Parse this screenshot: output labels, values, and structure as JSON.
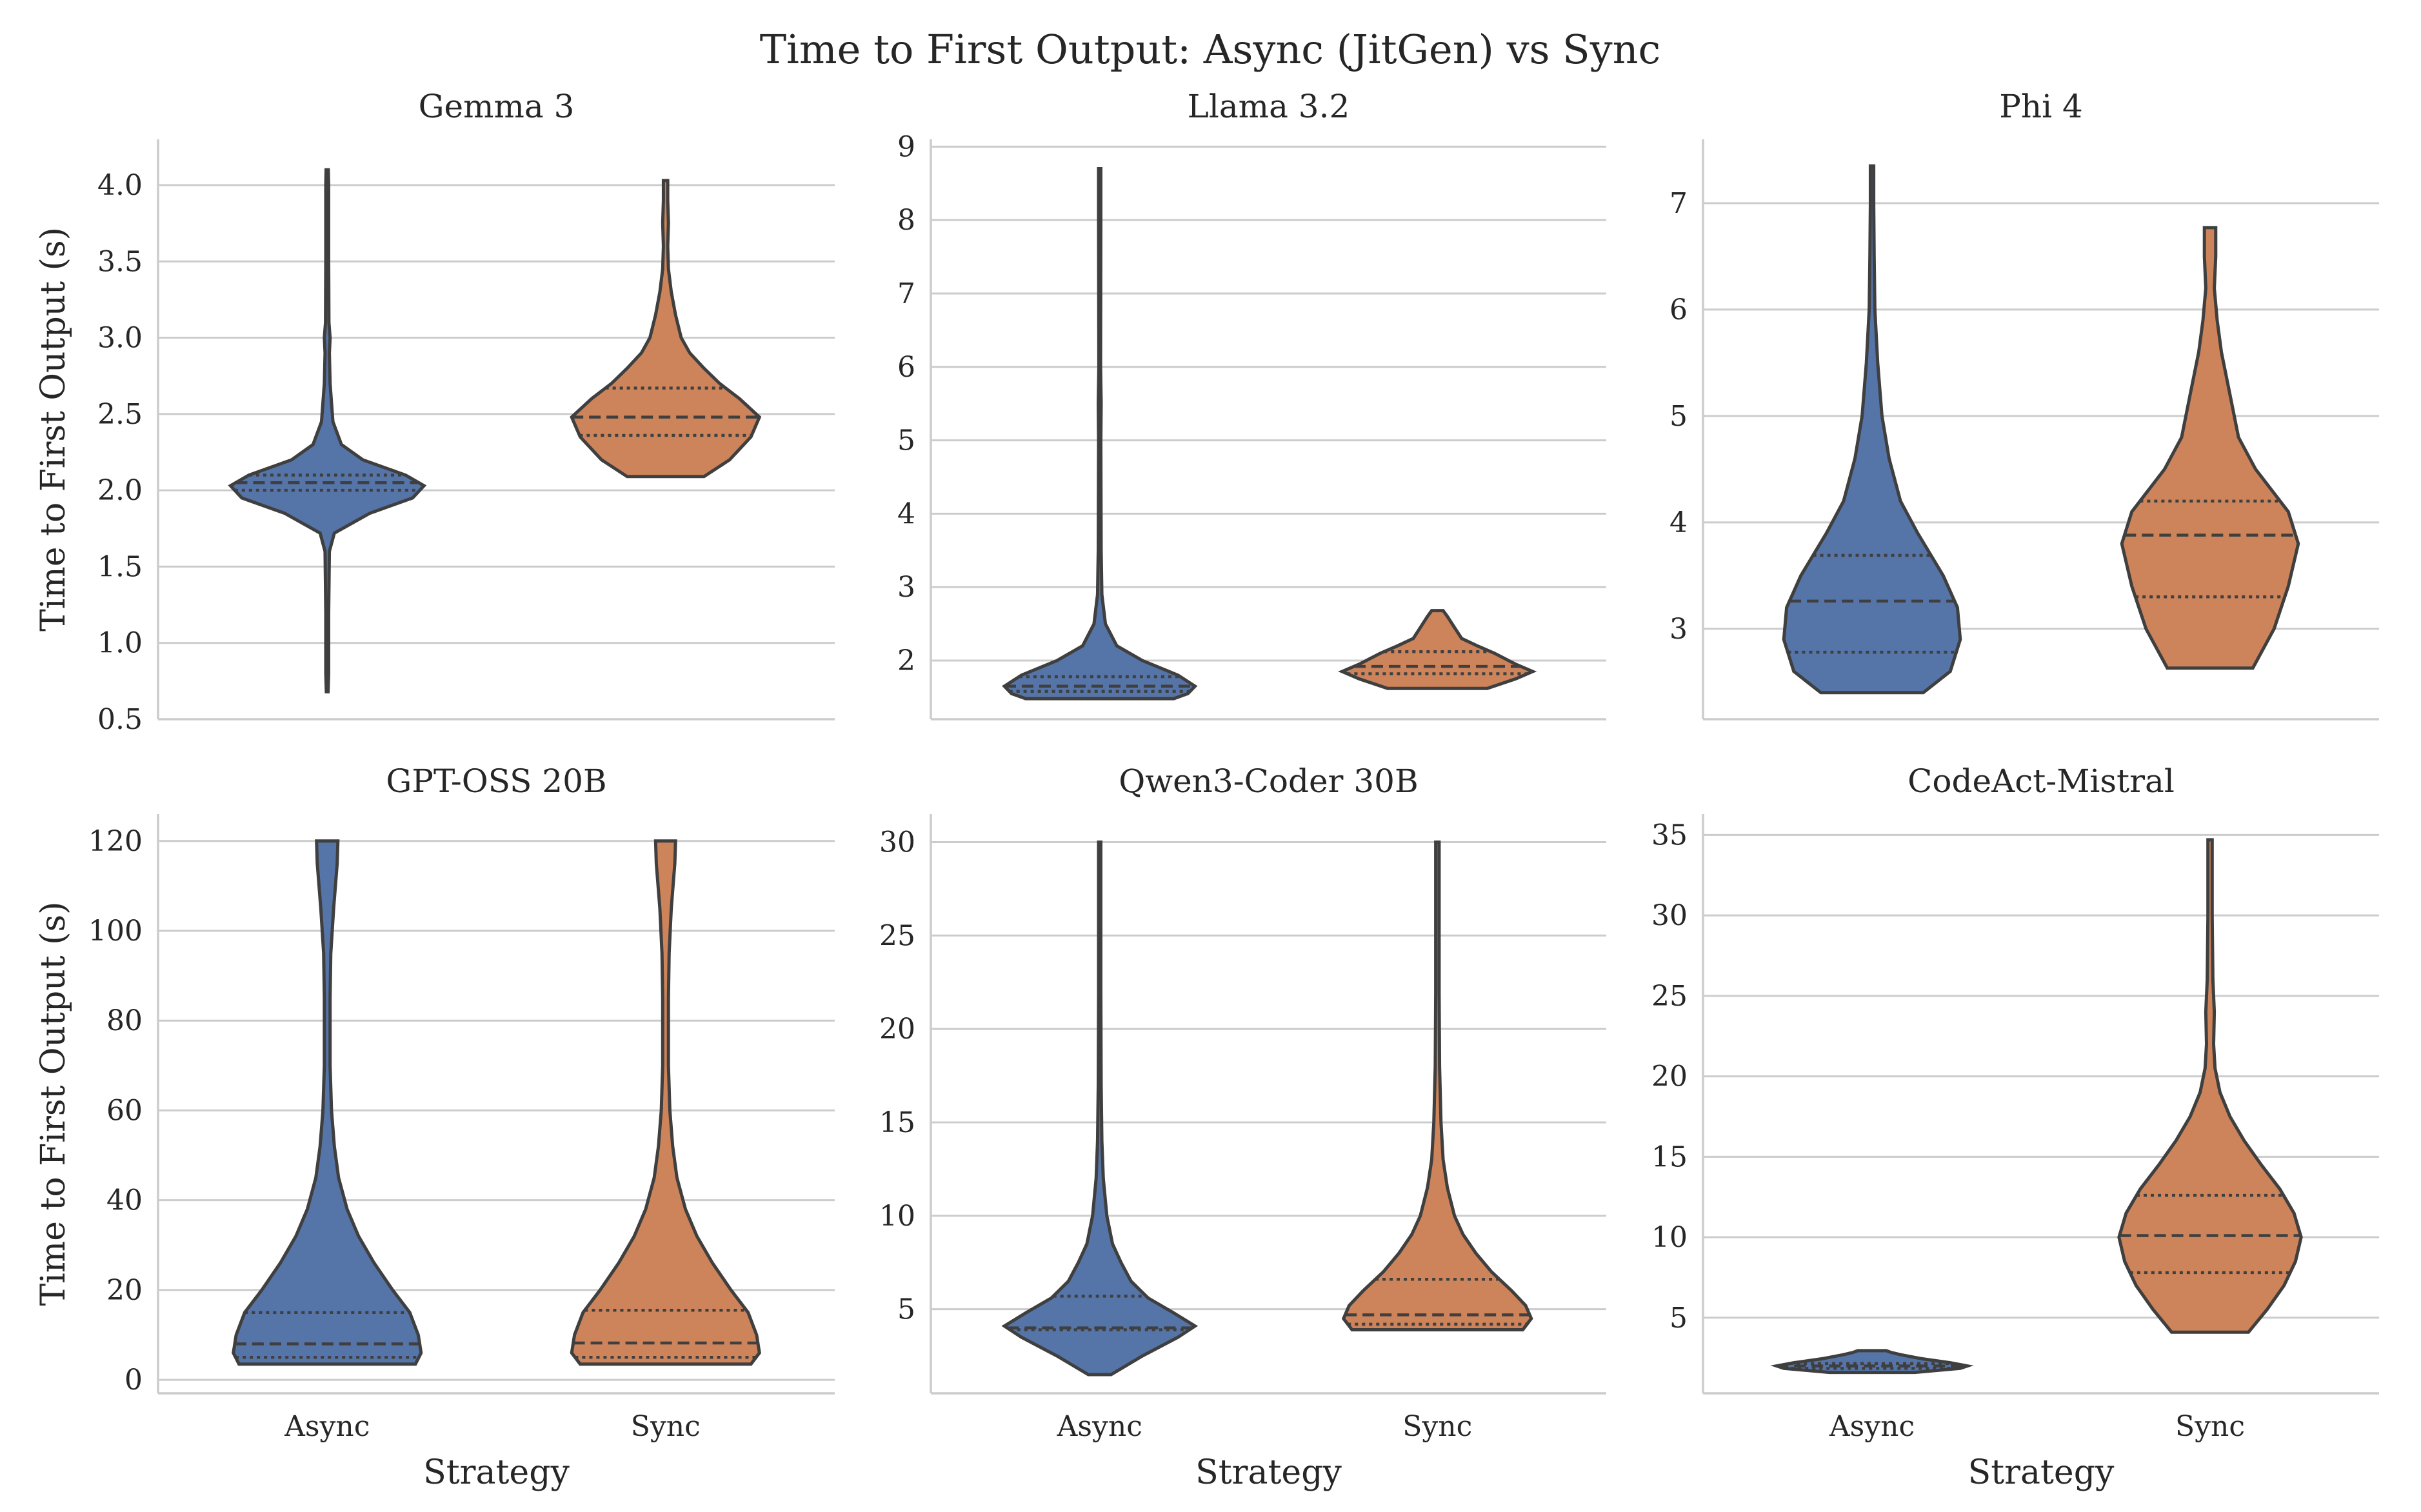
{
  "figure": {
    "title": "Time to First Output: Async (JitGen) vs Sync"
  },
  "colors": {
    "Async": "#5574a8",
    "Sync": "#cd845a"
  },
  "chart_data": [
    {
      "type": "violin",
      "title": "Gemma 3",
      "categories": [
        "Async",
        "Sync"
      ],
      "xlabel": "",
      "ylabel": "Time to First Output (s)",
      "ylim": [
        0.5,
        4.3
      ],
      "yticks": [
        0.5,
        1.0,
        1.5,
        2.0,
        2.5,
        3.0,
        3.5,
        4.0
      ],
      "tick_decimals": 1,
      "series": [
        {
          "name": "Async",
          "min": 0.68,
          "max": 4.1,
          "q1": 2.0,
          "median": 2.05,
          "q3": 2.1,
          "density": [
            [
              0.68,
              0.006
            ],
            [
              0.8,
              0.01
            ],
            [
              1.2,
              0.01
            ],
            [
              1.6,
              0.015
            ],
            [
              1.72,
              0.05
            ],
            [
              1.85,
              0.3
            ],
            [
              1.95,
              0.6
            ],
            [
              2.03,
              0.68
            ],
            [
              2.1,
              0.55
            ],
            [
              2.2,
              0.25
            ],
            [
              2.3,
              0.1
            ],
            [
              2.45,
              0.04
            ],
            [
              2.7,
              0.02
            ],
            [
              2.9,
              0.015
            ],
            [
              3.0,
              0.02
            ],
            [
              3.1,
              0.012
            ],
            [
              3.5,
              0.01
            ],
            [
              4.0,
              0.01
            ],
            [
              4.1,
              0.008
            ]
          ]
        },
        {
          "name": "Sync",
          "min": 2.09,
          "max": 4.03,
          "q1": 2.36,
          "median": 2.48,
          "q3": 2.67,
          "density": [
            [
              2.09,
              0.27
            ],
            [
              2.2,
              0.45
            ],
            [
              2.35,
              0.6
            ],
            [
              2.48,
              0.66
            ],
            [
              2.6,
              0.52
            ],
            [
              2.7,
              0.38
            ],
            [
              2.8,
              0.27
            ],
            [
              2.9,
              0.17
            ],
            [
              3.0,
              0.11
            ],
            [
              3.15,
              0.07
            ],
            [
              3.3,
              0.04
            ],
            [
              3.45,
              0.02
            ],
            [
              3.6,
              0.015
            ],
            [
              3.75,
              0.02
            ],
            [
              3.9,
              0.015
            ],
            [
              4.03,
              0.015
            ]
          ]
        }
      ]
    },
    {
      "type": "violin",
      "title": "Llama 3.2",
      "categories": [
        "Async",
        "Sync"
      ],
      "xlabel": "",
      "ylabel": "",
      "ylim": [
        1.2,
        9.1
      ],
      "yticks": [
        2,
        3,
        4,
        5,
        6,
        7,
        8,
        9
      ],
      "tick_decimals": 0,
      "series": [
        {
          "name": "Async",
          "min": 1.48,
          "max": 8.7,
          "q1": 1.58,
          "median": 1.65,
          "q3": 1.78,
          "density": [
            [
              1.48,
              0.52
            ],
            [
              1.55,
              0.62
            ],
            [
              1.65,
              0.67
            ],
            [
              1.8,
              0.55
            ],
            [
              2.0,
              0.3
            ],
            [
              2.2,
              0.12
            ],
            [
              2.5,
              0.04
            ],
            [
              2.9,
              0.015
            ],
            [
              3.5,
              0.01
            ],
            [
              5.0,
              0.008
            ],
            [
              5.5,
              0.01
            ],
            [
              6.0,
              0.006
            ],
            [
              8.0,
              0.008
            ],
            [
              8.7,
              0.008
            ]
          ]
        },
        {
          "name": "Sync",
          "min": 1.62,
          "max": 2.68,
          "q1": 1.82,
          "median": 1.92,
          "q3": 2.12,
          "density": [
            [
              1.62,
              0.35
            ],
            [
              1.75,
              0.55
            ],
            [
              1.85,
              0.67
            ],
            [
              1.95,
              0.55
            ],
            [
              2.1,
              0.4
            ],
            [
              2.2,
              0.28
            ],
            [
              2.3,
              0.17
            ],
            [
              2.45,
              0.12
            ],
            [
              2.6,
              0.07
            ],
            [
              2.68,
              0.04
            ]
          ]
        }
      ]
    },
    {
      "type": "violin",
      "title": "Phi 4",
      "categories": [
        "Async",
        "Sync"
      ],
      "xlabel": "",
      "ylabel": "",
      "ylim": [
        2.15,
        7.6
      ],
      "yticks": [
        3,
        4,
        5,
        6,
        7
      ],
      "tick_decimals": 0,
      "series": [
        {
          "name": "Async",
          "min": 2.4,
          "max": 7.35,
          "q1": 2.78,
          "median": 3.26,
          "q3": 3.69,
          "density": [
            [
              2.4,
              0.36
            ],
            [
              2.6,
              0.55
            ],
            [
              2.9,
              0.62
            ],
            [
              3.2,
              0.6
            ],
            [
              3.5,
              0.5
            ],
            [
              3.9,
              0.32
            ],
            [
              4.2,
              0.2
            ],
            [
              4.6,
              0.12
            ],
            [
              5.0,
              0.07
            ],
            [
              5.5,
              0.04
            ],
            [
              6.0,
              0.02
            ],
            [
              6.5,
              0.015
            ],
            [
              7.0,
              0.012
            ],
            [
              7.35,
              0.012
            ]
          ]
        },
        {
          "name": "Sync",
          "min": 2.63,
          "max": 6.77,
          "q1": 3.3,
          "median": 3.88,
          "q3": 4.2,
          "density": [
            [
              2.63,
              0.3
            ],
            [
              3.0,
              0.45
            ],
            [
              3.4,
              0.55
            ],
            [
              3.8,
              0.62
            ],
            [
              4.1,
              0.55
            ],
            [
              4.5,
              0.32
            ],
            [
              4.8,
              0.2
            ],
            [
              5.2,
              0.14
            ],
            [
              5.6,
              0.08
            ],
            [
              5.9,
              0.05
            ],
            [
              6.2,
              0.03
            ],
            [
              6.5,
              0.04
            ],
            [
              6.77,
              0.04
            ]
          ]
        }
      ]
    },
    {
      "type": "violin",
      "title": "GPT-OSS 20B",
      "categories": [
        "Async",
        "Sync"
      ],
      "xlabel": "Strategy",
      "ylabel": "Time to First Output (s)",
      "ylim": [
        -3,
        126
      ],
      "yticks": [
        0,
        20,
        40,
        60,
        80,
        100,
        120
      ],
      "tick_decimals": 0,
      "series": [
        {
          "name": "Async",
          "min": 3.5,
          "max": 120,
          "q1": 5.0,
          "median": 8.0,
          "q3": 15.0,
          "density": [
            [
              3.5,
              0.62
            ],
            [
              6,
              0.66
            ],
            [
              10,
              0.64
            ],
            [
              15,
              0.58
            ],
            [
              20,
              0.46
            ],
            [
              26,
              0.33
            ],
            [
              32,
              0.22
            ],
            [
              38,
              0.14
            ],
            [
              45,
              0.08
            ],
            [
              52,
              0.05
            ],
            [
              60,
              0.03
            ],
            [
              70,
              0.02
            ],
            [
              85,
              0.02
            ],
            [
              95,
              0.025
            ],
            [
              105,
              0.045
            ],
            [
              115,
              0.07
            ],
            [
              120,
              0.075
            ]
          ]
        },
        {
          "name": "Sync",
          "min": 3.5,
          "max": 120,
          "q1": 5.0,
          "median": 8.2,
          "q3": 15.5,
          "density": [
            [
              3.5,
              0.6
            ],
            [
              6,
              0.66
            ],
            [
              10,
              0.64
            ],
            [
              15,
              0.58
            ],
            [
              20,
              0.46
            ],
            [
              26,
              0.33
            ],
            [
              32,
              0.22
            ],
            [
              38,
              0.14
            ],
            [
              45,
              0.08
            ],
            [
              52,
              0.05
            ],
            [
              60,
              0.03
            ],
            [
              70,
              0.02
            ],
            [
              85,
              0.02
            ],
            [
              95,
              0.025
            ],
            [
              105,
              0.04
            ],
            [
              115,
              0.065
            ],
            [
              120,
              0.07
            ]
          ]
        }
      ]
    },
    {
      "type": "violin",
      "title": "Qwen3-Coder 30B",
      "categories": [
        "Async",
        "Sync"
      ],
      "xlabel": "Strategy",
      "ylabel": "",
      "ylim": [
        0.5,
        31.5
      ],
      "yticks": [
        5,
        10,
        15,
        20,
        25,
        30
      ],
      "tick_decimals": 0,
      "series": [
        {
          "name": "Async",
          "min": 1.5,
          "max": 30,
          "q1": 3.9,
          "median": 4.0,
          "q3": 5.7,
          "density": [
            [
              1.5,
              0.08
            ],
            [
              2.5,
              0.3
            ],
            [
              3.5,
              0.55
            ],
            [
              4.1,
              0.67
            ],
            [
              4.8,
              0.52
            ],
            [
              5.6,
              0.34
            ],
            [
              6.5,
              0.22
            ],
            [
              7.5,
              0.15
            ],
            [
              8.5,
              0.09
            ],
            [
              10,
              0.05
            ],
            [
              12,
              0.025
            ],
            [
              14,
              0.015
            ],
            [
              17,
              0.01
            ],
            [
              22,
              0.008
            ],
            [
              27,
              0.008
            ],
            [
              30,
              0.008
            ]
          ]
        },
        {
          "name": "Sync",
          "min": 3.9,
          "max": 30,
          "q1": 4.2,
          "median": 4.7,
          "q3": 6.6,
          "density": [
            [
              3.9,
              0.6
            ],
            [
              4.5,
              0.66
            ],
            [
              5.2,
              0.62
            ],
            [
              6,
              0.52
            ],
            [
              7,
              0.38
            ],
            [
              8,
              0.27
            ],
            [
              9,
              0.18
            ],
            [
              10,
              0.12
            ],
            [
              11.5,
              0.07
            ],
            [
              13,
              0.04
            ],
            [
              15,
              0.025
            ],
            [
              18,
              0.015
            ],
            [
              22,
              0.012
            ],
            [
              26,
              0.012
            ],
            [
              30,
              0.012
            ]
          ]
        }
      ]
    },
    {
      "type": "violin",
      "title": "CodeAct-Mistral",
      "categories": [
        "Async",
        "Sync"
      ],
      "xlabel": "Strategy",
      "ylabel": "",
      "ylim": [
        0.3,
        36.3
      ],
      "yticks": [
        5,
        10,
        15,
        20,
        25,
        30,
        35
      ],
      "tick_decimals": 0,
      "series": [
        {
          "name": "Async",
          "min": 1.6,
          "max": 2.95,
          "q1": 1.85,
          "median": 2.0,
          "q3": 2.15,
          "density": [
            [
              1.6,
              0.3
            ],
            [
              1.85,
              0.62
            ],
            [
              2.0,
              0.67
            ],
            [
              2.2,
              0.55
            ],
            [
              2.45,
              0.35
            ],
            [
              2.7,
              0.2
            ],
            [
              2.85,
              0.13
            ],
            [
              2.95,
              0.1
            ]
          ]
        },
        {
          "name": "Sync",
          "min": 4.1,
          "max": 34.7,
          "q1": 7.8,
          "median": 10.1,
          "q3": 12.6,
          "density": [
            [
              4.1,
              0.27
            ],
            [
              5.5,
              0.4
            ],
            [
              7,
              0.52
            ],
            [
              8.5,
              0.6
            ],
            [
              10,
              0.64
            ],
            [
              11.5,
              0.59
            ],
            [
              13,
              0.49
            ],
            [
              14.5,
              0.36
            ],
            [
              16,
              0.24
            ],
            [
              17.5,
              0.14
            ],
            [
              19,
              0.07
            ],
            [
              20.5,
              0.035
            ],
            [
              22,
              0.025
            ],
            [
              24,
              0.03
            ],
            [
              26,
              0.02
            ],
            [
              30,
              0.015
            ],
            [
              34.7,
              0.015
            ]
          ]
        }
      ]
    }
  ]
}
